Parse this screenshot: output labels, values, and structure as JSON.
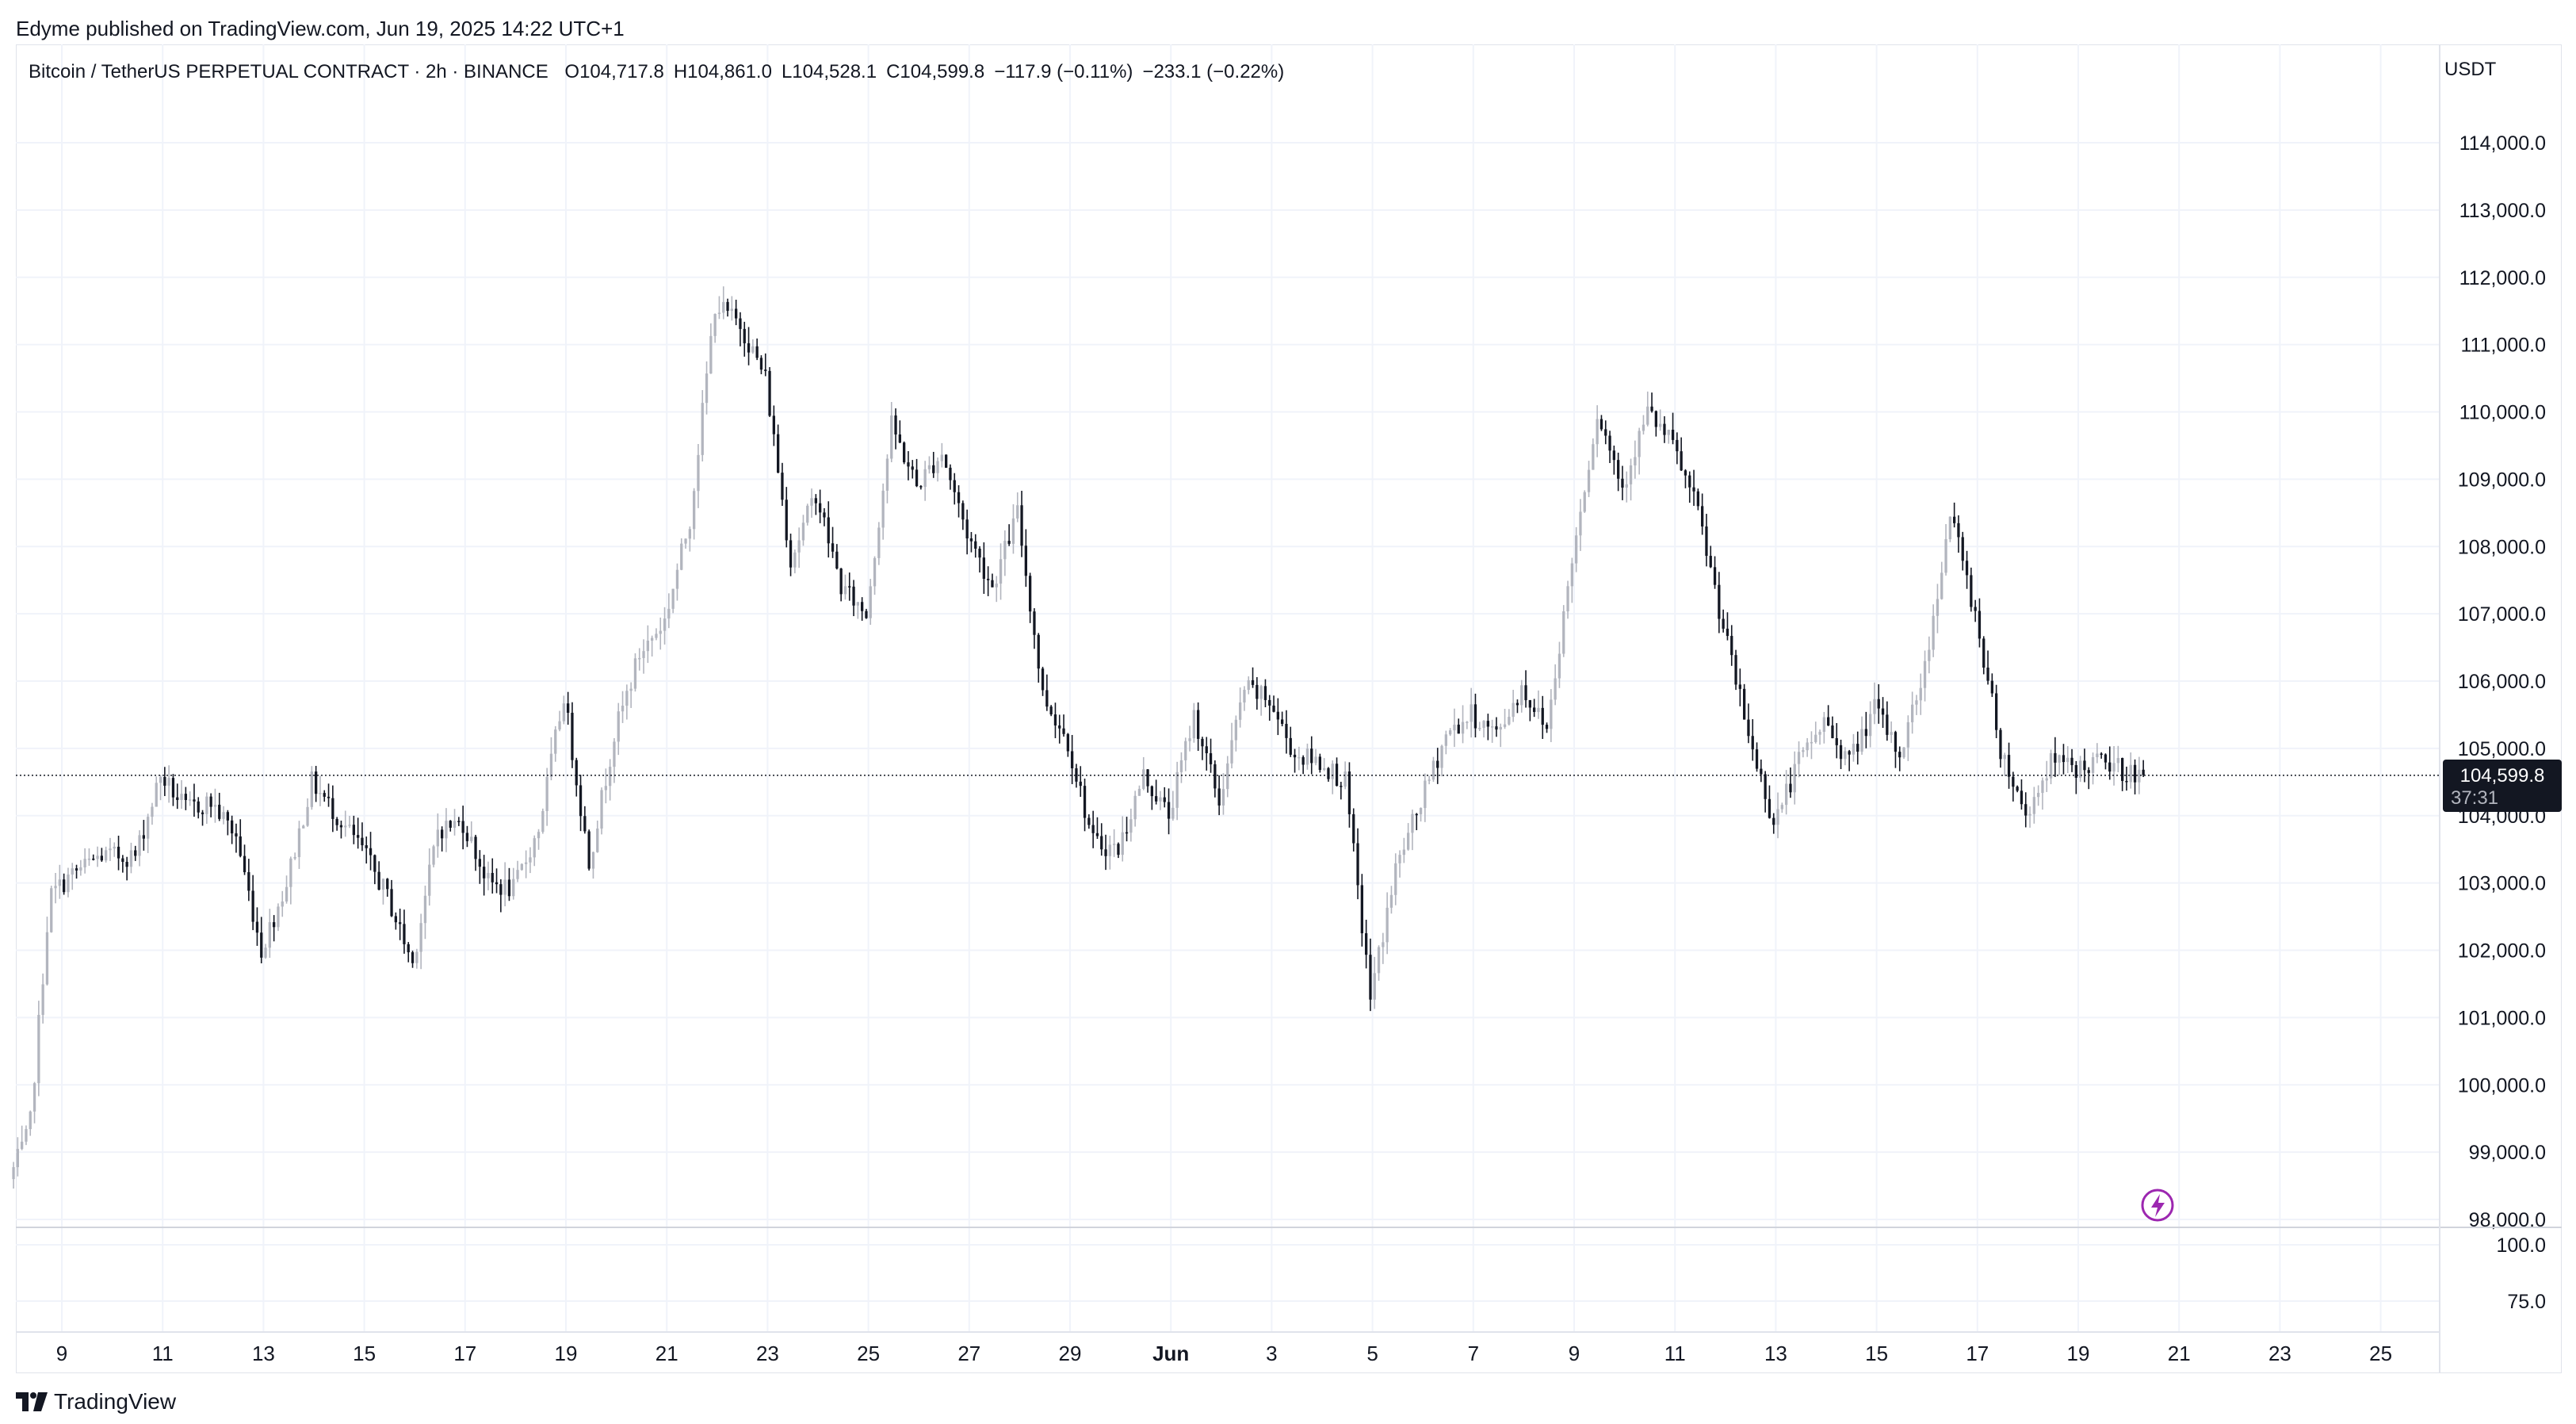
{
  "header": {
    "published_text": "Edyme published on TradingView.com, Jun 19, 2025 14:22 UTC+1"
  },
  "legend": {
    "symbol": "Bitcoin / TetherUS PERPETUAL CONTRACT · 2h · BINANCE",
    "open": "O104,717.8",
    "high": "H104,861.0",
    "low": "L104,528.1",
    "close": "C104,599.8",
    "change": "−117.9 (−0.11%)",
    "change2": "−233.1 (−0.22%)"
  },
  "price_scale": {
    "currency": "USDT",
    "ticks": [
      "114,000.0",
      "113,000.0",
      "112,000.0",
      "111,000.0",
      "110,000.0",
      "109,000.0",
      "108,000.0",
      "107,000.0",
      "106,000.0",
      "105,000.0",
      "104,000.0",
      "103,000.0",
      "102,000.0",
      "101,000.0",
      "100,000.0",
      "99,000.0",
      "98,000.0"
    ],
    "last_price_label": "104,599.8",
    "countdown_label": "37:31"
  },
  "indicator_scale": {
    "ticks": [
      "100.0",
      "75.0"
    ]
  },
  "time_axis": {
    "labels": [
      "9",
      "11",
      "13",
      "15",
      "17",
      "19",
      "21",
      "23",
      "25",
      "27",
      "29",
      "Jun",
      "3",
      "5",
      "7",
      "9",
      "11",
      "13",
      "15",
      "17",
      "19",
      "21",
      "23",
      "25"
    ]
  },
  "footer": {
    "brand": "TradingView"
  },
  "colors": {
    "up_candle": "#b2b5be",
    "down_candle": "#131722",
    "grid": "#f0f3fa",
    "price_label_bg": "#131722",
    "event_icon": "#9c27b0"
  },
  "icons": {
    "event_marker": "lightning-icon",
    "logo": "tradingview-logo-icon"
  },
  "chart_data": {
    "type": "candlestick",
    "title": "Bitcoin / TetherUS PERPETUAL CONTRACT · 2h · BINANCE",
    "interval": "2h",
    "ylim": [
      97900,
      114400
    ],
    "xlim_labels": [
      "May 8",
      "Jun 25"
    ],
    "last_price": 104599.8,
    "grid": true,
    "price_path": [
      {
        "day": 0.0,
        "price": 98600
      },
      {
        "day": 0.4,
        "price": 99300
      },
      {
        "day": 0.8,
        "price": 102800
      },
      {
        "day": 1.2,
        "price": 103100
      },
      {
        "day": 1.8,
        "price": 103400
      },
      {
        "day": 2.5,
        "price": 103400
      },
      {
        "day": 3.0,
        "price": 104600
      },
      {
        "day": 3.5,
        "price": 104100
      },
      {
        "day": 4.0,
        "price": 104200
      },
      {
        "day": 4.5,
        "price": 103700
      },
      {
        "day": 5.0,
        "price": 102000
      },
      {
        "day": 5.5,
        "price": 103000
      },
      {
        "day": 6.0,
        "price": 104500
      },
      {
        "day": 6.5,
        "price": 104000
      },
      {
        "day": 7.0,
        "price": 103500
      },
      {
        "day": 7.5,
        "price": 102800
      },
      {
        "day": 8.0,
        "price": 101800
      },
      {
        "day": 8.5,
        "price": 103800
      },
      {
        "day": 9.0,
        "price": 103900
      },
      {
        "day": 9.5,
        "price": 103000
      },
      {
        "day": 10.0,
        "price": 102900
      },
      {
        "day": 10.5,
        "price": 103800
      },
      {
        "day": 11.0,
        "price": 105800
      },
      {
        "day": 11.5,
        "price": 103300
      },
      {
        "day": 12.0,
        "price": 105200
      },
      {
        "day": 12.5,
        "price": 106400
      },
      {
        "day": 13.0,
        "price": 106900
      },
      {
        "day": 13.5,
        "price": 108400
      },
      {
        "day": 14.0,
        "price": 111600
      },
      {
        "day": 14.5,
        "price": 111300
      },
      {
        "day": 15.0,
        "price": 110500
      },
      {
        "day": 15.5,
        "price": 107800
      },
      {
        "day": 16.0,
        "price": 108800
      },
      {
        "day": 16.5,
        "price": 107400
      },
      {
        "day": 17.0,
        "price": 107000
      },
      {
        "day": 17.5,
        "price": 109800
      },
      {
        "day": 18.0,
        "price": 108900
      },
      {
        "day": 18.5,
        "price": 109400
      },
      {
        "day": 19.0,
        "price": 108200
      },
      {
        "day": 19.5,
        "price": 107400
      },
      {
        "day": 20.0,
        "price": 108500
      },
      {
        "day": 20.5,
        "price": 105800
      },
      {
        "day": 21.0,
        "price": 105100
      },
      {
        "day": 21.5,
        "price": 103600
      },
      {
        "day": 22.0,
        "price": 103500
      },
      {
        "day": 22.5,
        "price": 104600
      },
      {
        "day": 23.0,
        "price": 104000
      },
      {
        "day": 23.5,
        "price": 105500
      },
      {
        "day": 24.0,
        "price": 104200
      },
      {
        "day": 24.5,
        "price": 105900
      },
      {
        "day": 25.0,
        "price": 105700
      },
      {
        "day": 25.5,
        "price": 104900
      },
      {
        "day": 26.0,
        "price": 104800
      },
      {
        "day": 26.5,
        "price": 104500
      },
      {
        "day": 27.0,
        "price": 101300
      },
      {
        "day": 27.5,
        "price": 103200
      },
      {
        "day": 28.0,
        "price": 104200
      },
      {
        "day": 28.5,
        "price": 105200
      },
      {
        "day": 29.0,
        "price": 105500
      },
      {
        "day": 29.5,
        "price": 105200
      },
      {
        "day": 30.0,
        "price": 105900
      },
      {
        "day": 30.5,
        "price": 105300
      },
      {
        "day": 31.0,
        "price": 107800
      },
      {
        "day": 31.5,
        "price": 110000
      },
      {
        "day": 32.0,
        "price": 108900
      },
      {
        "day": 32.5,
        "price": 110000
      },
      {
        "day": 33.0,
        "price": 109500
      },
      {
        "day": 33.5,
        "price": 108500
      },
      {
        "day": 34.0,
        "price": 106800
      },
      {
        "day": 34.5,
        "price": 105200
      },
      {
        "day": 35.0,
        "price": 103900
      },
      {
        "day": 35.5,
        "price": 104800
      },
      {
        "day": 36.0,
        "price": 105400
      },
      {
        "day": 36.5,
        "price": 104800
      },
      {
        "day": 37.0,
        "price": 105600
      },
      {
        "day": 37.5,
        "price": 104900
      },
      {
        "day": 38.0,
        "price": 106200
      },
      {
        "day": 38.5,
        "price": 108500
      },
      {
        "day": 39.0,
        "price": 107000
      },
      {
        "day": 39.5,
        "price": 105000
      },
      {
        "day": 40.0,
        "price": 104000
      },
      {
        "day": 40.5,
        "price": 104800
      },
      {
        "day": 41.0,
        "price": 104700
      },
      {
        "day": 41.5,
        "price": 104800
      },
      {
        "day": 42.0,
        "price": 104650
      },
      {
        "day": 42.3,
        "price": 104600
      }
    ]
  }
}
